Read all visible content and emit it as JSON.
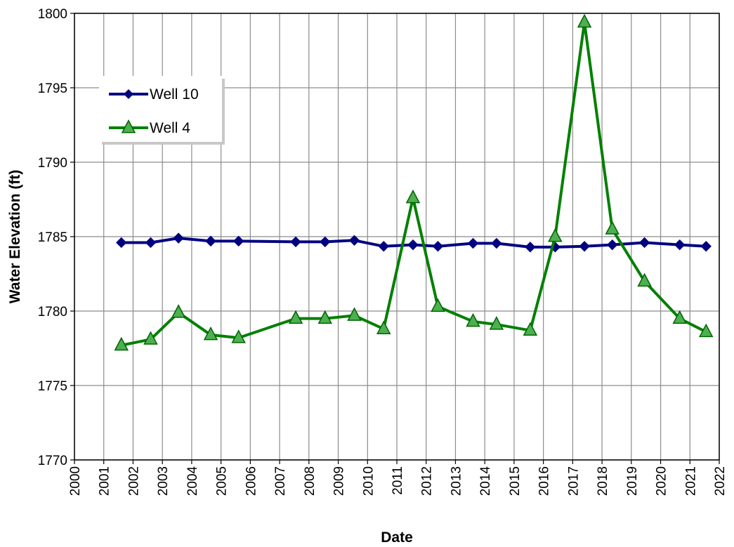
{
  "chart_data": {
    "type": "line",
    "title": "",
    "xlabel": "Date",
    "ylabel": "Water Elevation (ft)",
    "xlim": [
      2000,
      2022
    ],
    "ylim": [
      1770,
      1800
    ],
    "x_ticks": [
      "2000",
      "2001",
      "2002",
      "2003",
      "2004",
      "2005",
      "2006",
      "2007",
      "2008",
      "2009",
      "2010",
      "2011",
      "2012",
      "2013",
      "2014",
      "2015",
      "2016",
      "2017",
      "2018",
      "2019",
      "2020",
      "2021",
      "2022"
    ],
    "y_ticks": [
      "1770",
      "1775",
      "1780",
      "1785",
      "1790",
      "1795",
      "1800"
    ],
    "grid": true,
    "legend_position": "top-left",
    "series": [
      {
        "name": "Well 10",
        "color": "#000080",
        "marker": "diamond",
        "x": [
          2001.6,
          2002.6,
          2003.55,
          2004.65,
          2005.6,
          2007.55,
          2008.55,
          2009.55,
          2010.55,
          2011.55,
          2012.4,
          2013.6,
          2014.4,
          2015.55,
          2016.4,
          2017.4,
          2018.35,
          2019.45,
          2020.65,
          2021.55
        ],
        "y": [
          1784.6,
          1784.6,
          1784.9,
          1784.7,
          1784.7,
          1784.65,
          1784.65,
          1784.75,
          1784.35,
          1784.45,
          1784.35,
          1784.55,
          1784.55,
          1784.3,
          1784.3,
          1784.35,
          1784.45,
          1784.6,
          1784.45,
          1784.35
        ]
      },
      {
        "name": "Well 4",
        "color": "#008000",
        "marker": "triangle",
        "x": [
          2001.6,
          2002.6,
          2003.55,
          2004.65,
          2005.6,
          2007.55,
          2008.55,
          2009.55,
          2010.55,
          2011.55,
          2012.4,
          2013.6,
          2014.4,
          2015.55,
          2016.4,
          2017.4,
          2018.35,
          2019.45,
          2020.65,
          2021.55
        ],
        "y": [
          1777.7,
          1778.1,
          1779.9,
          1778.4,
          1778.2,
          1779.5,
          1779.5,
          1779.7,
          1778.8,
          1787.6,
          1780.3,
          1779.3,
          1779.1,
          1778.7,
          1785.0,
          1799.4,
          1785.5,
          1782.0,
          1779.5,
          1778.6
        ]
      }
    ]
  }
}
